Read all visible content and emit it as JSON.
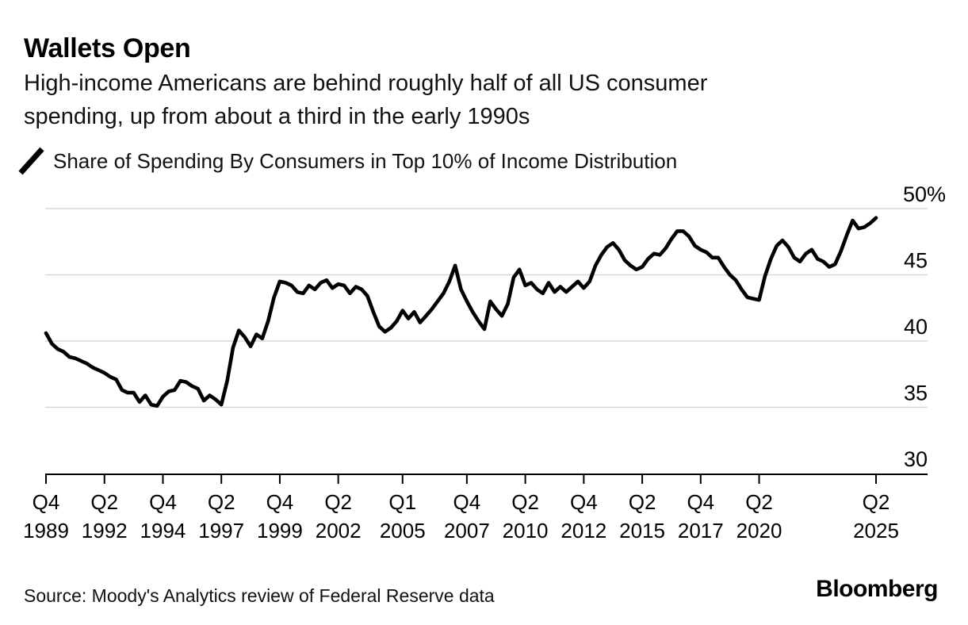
{
  "header": {
    "title": "Wallets Open",
    "subtitle_lines": [
      "High-income Americans are behind roughly half of all US consumer",
      "spending, up from about a third in the early 1990s"
    ]
  },
  "legend": {
    "series_label": "Share of Spending By Consumers in Top 10% of Income Distribution",
    "swatch": "diagonal-line"
  },
  "footer": {
    "source": "Source: Moody's Analytics review of Federal Reserve data",
    "brand": "Bloomberg"
  },
  "chart_data": {
    "type": "line",
    "title": "Share of Spending By Consumers in Top 10% of Income Distribution",
    "unit": "percent",
    "frequency": "quarterly",
    "x_start": "Q4 1989",
    "x_end": "Q2 2025",
    "ylim": [
      30,
      50
    ],
    "grid": "horizontal",
    "legend_position": "top-left",
    "y_axis": {
      "side": "right",
      "ticks": [
        {
          "value": 50,
          "label": "50%"
        },
        {
          "value": 45,
          "label": "45"
        },
        {
          "value": 40,
          "label": "40"
        },
        {
          "value": 35,
          "label": "35"
        },
        {
          "value": 30,
          "label": "30"
        }
      ]
    },
    "x_axis": {
      "ticks": [
        {
          "index": 0,
          "quarter": "Q4",
          "year": "1989"
        },
        {
          "index": 10,
          "quarter": "Q2",
          "year": "1992"
        },
        {
          "index": 20,
          "quarter": "Q4",
          "year": "1994"
        },
        {
          "index": 30,
          "quarter": "Q2",
          "year": "1997"
        },
        {
          "index": 40,
          "quarter": "Q4",
          "year": "1999"
        },
        {
          "index": 50,
          "quarter": "Q2",
          "year": "2002"
        },
        {
          "index": 61,
          "quarter": "Q1",
          "year": "2005"
        },
        {
          "index": 72,
          "quarter": "Q4",
          "year": "2007"
        },
        {
          "index": 82,
          "quarter": "Q2",
          "year": "2010"
        },
        {
          "index": 92,
          "quarter": "Q4",
          "year": "2012"
        },
        {
          "index": 102,
          "quarter": "Q2",
          "year": "2015"
        },
        {
          "index": 112,
          "quarter": "Q4",
          "year": "2017"
        },
        {
          "index": 122,
          "quarter": "Q2",
          "year": "2020"
        },
        {
          "index": 142,
          "quarter": "Q2",
          "year": "2025"
        }
      ]
    },
    "series": [
      {
        "name": "Share of Spending By Consumers in Top 10% of Income Distribution",
        "values": [
          40.6,
          39.8,
          39.4,
          39.2,
          38.8,
          38.7,
          38.5,
          38.3,
          38.0,
          37.8,
          37.6,
          37.3,
          37.1,
          36.3,
          36.1,
          36.1,
          35.4,
          35.9,
          35.2,
          35.1,
          35.8,
          36.2,
          36.3,
          37.0,
          36.9,
          36.6,
          36.4,
          35.5,
          35.9,
          35.6,
          35.2,
          37.0,
          39.5,
          40.8,
          40.3,
          39.6,
          40.5,
          40.2,
          41.5,
          43.3,
          44.5,
          44.4,
          44.2,
          43.7,
          43.6,
          44.2,
          43.9,
          44.4,
          44.6,
          44.0,
          44.3,
          44.2,
          43.6,
          44.1,
          43.9,
          43.4,
          42.2,
          41.1,
          40.7,
          41.0,
          41.5,
          42.3,
          41.7,
          42.2,
          41.4,
          41.9,
          42.4,
          43.0,
          43.6,
          44.5,
          45.7,
          43.9,
          43.0,
          42.2,
          41.5,
          40.9,
          43.0,
          42.4,
          41.9,
          42.8,
          44.8,
          45.4,
          44.2,
          44.4,
          43.9,
          43.6,
          44.4,
          43.7,
          44.1,
          43.7,
          44.1,
          44.5,
          44.0,
          44.5,
          45.7,
          46.5,
          47.1,
          47.4,
          46.9,
          46.1,
          45.7,
          45.4,
          45.6,
          46.2,
          46.6,
          46.5,
          47.0,
          47.7,
          48.3,
          48.3,
          47.9,
          47.2,
          46.9,
          46.7,
          46.3,
          46.3,
          45.6,
          45.0,
          44.6,
          43.9,
          43.3,
          43.2,
          43.1,
          44.9,
          46.2,
          47.2,
          47.6,
          47.1,
          46.3,
          46.0,
          46.6,
          46.9,
          46.2,
          46.0,
          45.6,
          45.8,
          46.8,
          48.0,
          49.1,
          48.5,
          48.6,
          48.9,
          49.3
        ]
      }
    ],
    "colors": {
      "line": "#000000",
      "grid": "#d8d8d8",
      "axis": "#000000",
      "text": "#000000",
      "background": "#ffffff"
    }
  }
}
